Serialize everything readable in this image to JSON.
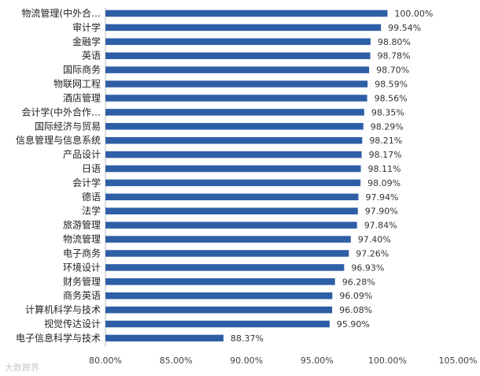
{
  "watermark": "大数跨界",
  "chart_data": {
    "type": "bar",
    "orientation": "horizontal",
    "categories": [
      "物流管理(中外合…",
      "审计学",
      "金融学",
      "英语",
      "国际商务",
      "物联网工程",
      "酒店管理",
      "会计学(中外合作…",
      "国际经济与贸易",
      "信息管理与信息系统",
      "产品设计",
      "日语",
      "会计学",
      "德语",
      "法学",
      "旅游管理",
      "物流管理",
      "电子商务",
      "环境设计",
      "财务管理",
      "商务英语",
      "计算机科学与技术",
      "视觉传达设计",
      "电子信息科学与技术"
    ],
    "values": [
      100.0,
      99.54,
      98.8,
      98.78,
      98.7,
      98.59,
      98.56,
      98.35,
      98.29,
      98.21,
      98.17,
      98.11,
      98.09,
      97.94,
      97.9,
      97.84,
      97.4,
      97.26,
      96.93,
      96.28,
      96.09,
      96.08,
      95.9,
      88.37
    ],
    "value_labels": [
      "100.00%",
      "99.54%",
      "98.80%",
      "98.78%",
      "98.70%",
      "98.59%",
      "98.56%",
      "98.35%",
      "98.29%",
      "98.21%",
      "98.17%",
      "98.11%",
      "98.09%",
      "97.94%",
      "97.90%",
      "97.84%",
      "97.40%",
      "97.26%",
      "96.93%",
      "96.28%",
      "96.09%",
      "96.08%",
      "95.90%",
      "88.37%"
    ],
    "xlim": [
      80,
      105
    ],
    "x_ticks": [
      80,
      85,
      90,
      95,
      100,
      105
    ],
    "x_tick_labels": [
      "80.00%",
      "85.00%",
      "90.00%",
      "95.00%",
      "100.00%",
      "105.00%"
    ],
    "bar_color": "#2e5fa6",
    "grid": false,
    "legend": "none"
  }
}
